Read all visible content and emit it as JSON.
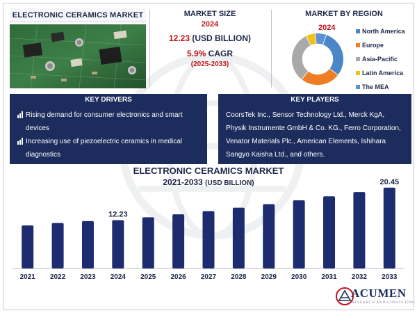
{
  "header": {
    "title": "ELECTRONIC CERAMICS MARKET"
  },
  "market_size": {
    "title": "MARKET SIZE",
    "year": "2024",
    "value": "12.23",
    "unit": " (USD BILLION)",
    "cagr_value": "5.9%",
    "cagr_label": " CAGR",
    "period": "(2025-2033)"
  },
  "region": {
    "title": "MARKET BY REGION",
    "year": "2024",
    "items": [
      {
        "label": "North America",
        "color": "#4a86c8",
        "share": 30
      },
      {
        "label": "Europe",
        "color": "#ef7d22",
        "share": 25
      },
      {
        "label": "Asia-Pacific",
        "color": "#a9a9a9",
        "share": 32
      },
      {
        "label": "Latin America",
        "color": "#f2c01d",
        "share": 6
      },
      {
        "label": "The MEA",
        "color": "#5b92d4",
        "share": 7
      }
    ]
  },
  "key_drivers": {
    "title": "KEY DRIVERS",
    "items": [
      "Rising demand for consumer electronics and smart devices",
      "Increasing use of piezoelectric ceramics in medical diagnostics"
    ]
  },
  "key_players": {
    "title": "KEY PLAYERS",
    "text": "CoorsTek Inc., Sensor Technology Ltd., Merck KgA, Physik Instrumente GmbH & Co. KG., Ferro Corporation, Venator Materials Plc., American Elements, Ishihara Sangyo Kaisha Ltd., and others."
  },
  "chart_data": {
    "type": "bar",
    "title": "ELECTRONIC CERAMICS MARKET",
    "subtitle": "2021-2033",
    "unit_label": "(USD BILLION)",
    "categories": [
      "2021",
      "2022",
      "2023",
      "2024",
      "2025",
      "2026",
      "2027",
      "2028",
      "2029",
      "2030",
      "2031",
      "2032",
      "2033"
    ],
    "values": [
      10.9,
      11.5,
      12.0,
      12.23,
      12.95,
      13.71,
      14.52,
      15.38,
      16.29,
      17.25,
      18.26,
      19.34,
      20.45
    ],
    "labeled": {
      "2024": "12.23",
      "2033": "20.45"
    },
    "ylim": [
      0,
      22
    ],
    "xlabel": "",
    "ylabel": "",
    "color": "#1c2c6e"
  },
  "brand": {
    "name": "ACUMEN",
    "tagline": "RESEARCH AND CONSULTING"
  }
}
